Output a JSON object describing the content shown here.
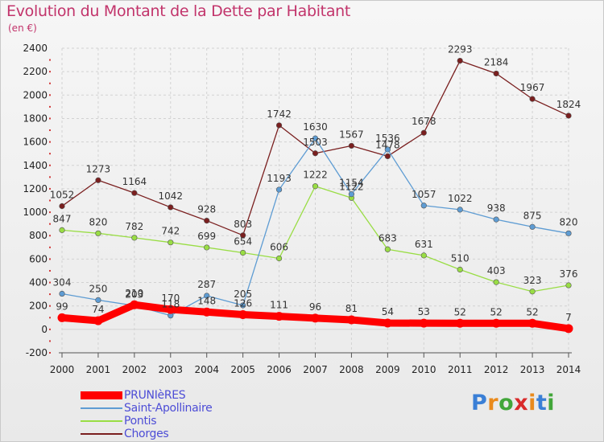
{
  "title": "Evolution du Montant de la Dette par Habitant",
  "subtitle": "(en €)",
  "brand": {
    "text": "Proxiti",
    "letter_colors": [
      "#3a7fd6",
      "#e98a1c",
      "#42a63a",
      "#d92a2a",
      "#e98a1c",
      "#3a7fd6",
      "#42a63a"
    ]
  },
  "chart_data": {
    "type": "line",
    "title": "Evolution du Montant de la Dette par Habitant",
    "ylabel": "(en €)",
    "xlabel": "",
    "x": [
      "2000",
      "2001",
      "2002",
      "2003",
      "2004",
      "2005",
      "2006",
      "2007",
      "2008",
      "2009",
      "2010",
      "2011",
      "2012",
      "2013",
      "2014"
    ],
    "ylim": [
      -200,
      2400
    ],
    "yticks": [
      "-200",
      "0",
      "200",
      "400",
      "600",
      "800",
      "1000",
      "1200",
      "1400",
      "1600",
      "1800",
      "2000",
      "2200",
      "2400"
    ],
    "grid": true,
    "legend_position": "bottom-left",
    "series": [
      {
        "name": "PRUNIèRES",
        "color": "#ff0000",
        "values": [
          99,
          74,
          210,
          170,
          148,
          126,
          111,
          96,
          81,
          54,
          53,
          52,
          52,
          52,
          7
        ],
        "labels": [
          "99",
          "74",
          "210",
          "170",
          "148",
          "126",
          "111",
          "96",
          "81",
          "54",
          "53",
          "52",
          "52",
          "52",
          "7"
        ]
      },
      {
        "name": "Saint-Apollinaire",
        "color": "#5e9cd3",
        "values": [
          304,
          250,
          203,
          118,
          287,
          205,
          1193,
          1630,
          1154,
          1536,
          1057,
          1022,
          938,
          875,
          820
        ],
        "labels": [
          "304",
          "250",
          "203",
          "118",
          "287",
          "205",
          "1193",
          "1630",
          "1154",
          "1536",
          "1057",
          "1022",
          "938",
          "875",
          "820"
        ]
      },
      {
        "name": "Pontis",
        "color": "#99dd44",
        "values": [
          847,
          820,
          782,
          742,
          699,
          654,
          606,
          1222,
          1122,
          683,
          631,
          510,
          403,
          323,
          376
        ],
        "labels": [
          "847",
          "820",
          "782",
          "742",
          "699",
          "654",
          "606",
          "1222",
          "1122",
          "683",
          "631",
          "510",
          "403",
          "323",
          "376"
        ]
      },
      {
        "name": "Chorges",
        "color": "#7a1f1f",
        "values": [
          1052,
          1273,
          1164,
          1042,
          928,
          803,
          1742,
          1503,
          1567,
          1478,
          1678,
          2293,
          2184,
          1967,
          1824
        ],
        "labels": [
          "1052",
          "1273",
          "1164",
          "1042",
          "928",
          "803",
          "1742",
          "1503",
          "1567",
          "1478",
          "1678",
          "2293",
          "2184",
          "1967",
          "1824"
        ]
      }
    ]
  }
}
